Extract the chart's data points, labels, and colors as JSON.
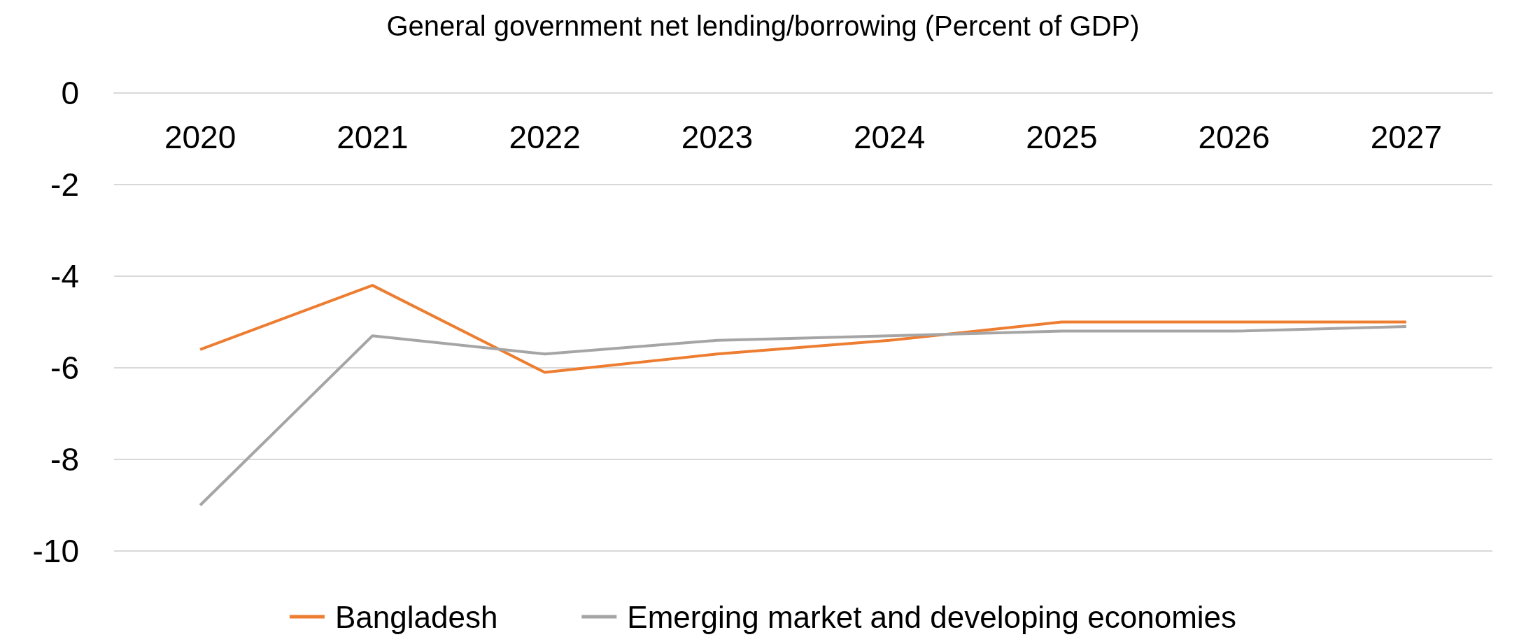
{
  "chart_data": {
    "type": "line",
    "title": "General government net lending/borrowing (Percent of GDP)",
    "categories": [
      "2020",
      "2021",
      "2022",
      "2023",
      "2024",
      "2025",
      "2026",
      "2027"
    ],
    "series": [
      {
        "name": "Bangladesh",
        "color": "#ed7d31",
        "values": [
          -5.6,
          -4.2,
          -6.1,
          -5.7,
          -5.4,
          -5.0,
          -5.0,
          -5.0
        ]
      },
      {
        "name": "Emerging market and developing economies",
        "color": "#a5a5a5",
        "values": [
          -9.0,
          -5.3,
          -5.7,
          -5.4,
          -5.3,
          -5.2,
          -5.2,
          -5.1
        ]
      }
    ],
    "ylim": [
      -10,
      0
    ],
    "yticks": [
      -10,
      -8,
      -6,
      -4,
      -2,
      0
    ],
    "grid": "y",
    "legend": "bottom",
    "marker": "none",
    "line_style": "solid"
  }
}
